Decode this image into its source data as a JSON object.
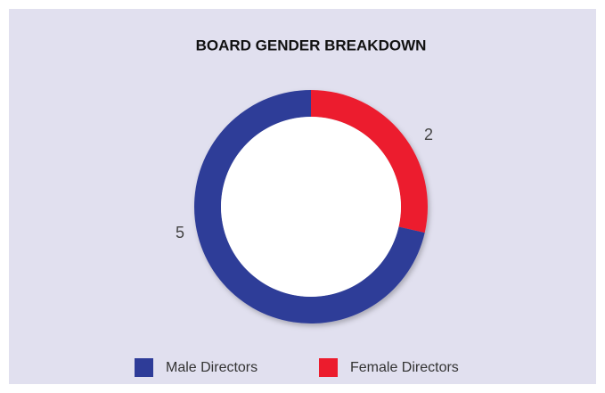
{
  "chart_data": {
    "type": "donut",
    "title": "BOARD GENDER BREAKDOWN",
    "categories": [
      "Female Directors",
      "Male Directors"
    ],
    "values": [
      2,
      5
    ],
    "colors": [
      "#ec1c2d",
      "#2e3c98"
    ]
  }
}
